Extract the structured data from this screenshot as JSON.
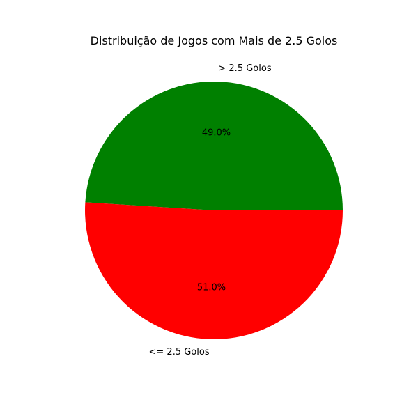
{
  "chart_data": {
    "type": "pie",
    "title": "Distribuição de Jogos com Mais de 2.5 Golos",
    "start_angle_deg": 0,
    "direction": "counterclockwise",
    "slices": [
      {
        "label": "> 2.5 Golos",
        "value": 49.0,
        "pct_label": "49.0%",
        "color": "#008000"
      },
      {
        "label": "<= 2.5 Golos",
        "value": 51.0,
        "pct_label": "51.0%",
        "color": "#ff0000"
      }
    ]
  }
}
